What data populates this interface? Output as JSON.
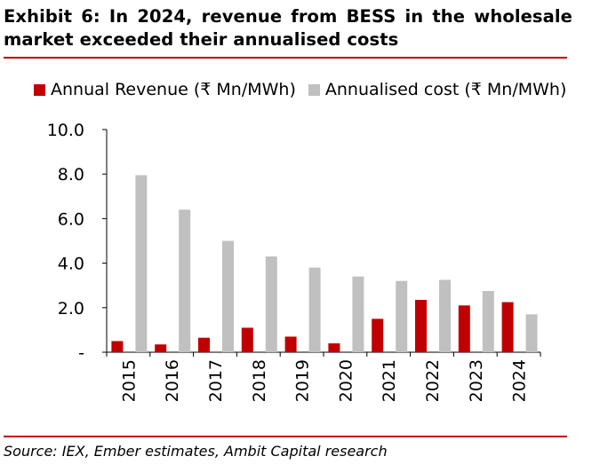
{
  "header": {
    "title": "Exhibit 6: In 2024, revenue from BESS in the wholesale market exceeded their annualised costs"
  },
  "footer": {
    "source": "Source: IEX, Ember estimates, Ambit Capital research"
  },
  "colors": {
    "accent": "#c00000",
    "revenue": "#c00000",
    "cost": "#c0c0c0"
  },
  "chart_data": {
    "type": "bar",
    "title": "",
    "xlabel": "",
    "ylabel": "",
    "categories": [
      "2015",
      "2016",
      "2017",
      "2018",
      "2019",
      "2020",
      "2021",
      "2022",
      "2023",
      "2024"
    ],
    "series": [
      {
        "name": "Annual Revenue (₹ Mn/MWh)",
        "color": "#c00000",
        "values": [
          0.5,
          0.35,
          0.65,
          1.1,
          0.7,
          0.4,
          1.5,
          2.35,
          2.1,
          2.25
        ]
      },
      {
        "name": "Annualised cost (₹ Mn/MWh)",
        "color": "#c0c0c0",
        "values": [
          7.95,
          6.4,
          5.0,
          4.3,
          3.8,
          3.4,
          3.2,
          3.25,
          2.75,
          1.7
        ]
      }
    ],
    "ylim": [
      0,
      10
    ],
    "yticks": [
      0,
      2,
      4,
      6,
      8,
      10
    ],
    "ytick_labels": [
      "-",
      "2.0",
      "4.0",
      "6.0",
      "8.0",
      "10.0"
    ],
    "legend_position": "top",
    "grid": false
  }
}
